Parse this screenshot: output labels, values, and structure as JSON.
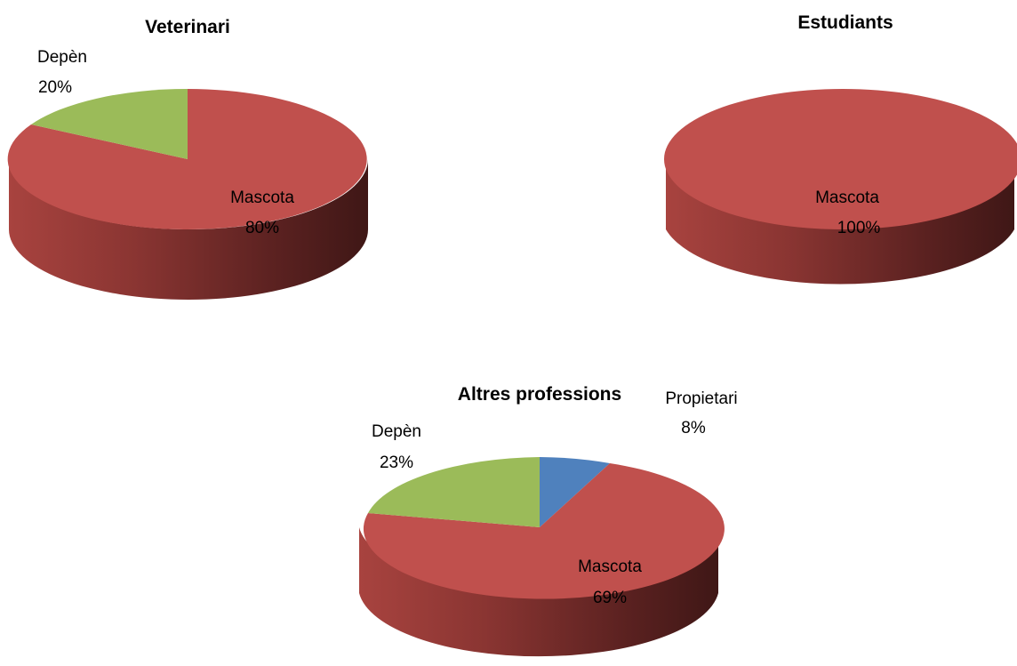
{
  "colors": {
    "Propietari": "#4F81BD",
    "Mascota": "#C0504D",
    "Depèn": "#9BBB59"
  },
  "chart_data": [
    {
      "type": "pie",
      "style": "3d",
      "title": "Veterinari",
      "slices": [
        {
          "name": "Mascota",
          "value": 80,
          "label": "80%"
        },
        {
          "name": "Depèn",
          "value": 20,
          "label": "20%"
        }
      ]
    },
    {
      "type": "pie",
      "style": "3d",
      "title": "Estudiants",
      "slices": [
        {
          "name": "Mascota",
          "value": 100,
          "label": "100%"
        }
      ]
    },
    {
      "type": "pie",
      "style": "3d",
      "title": "Altres professions",
      "slices": [
        {
          "name": "Propietari",
          "value": 8,
          "label": "8%"
        },
        {
          "name": "Mascota",
          "value": 69,
          "label": "69%"
        },
        {
          "name": "Depèn",
          "value": 23,
          "label": "23%"
        }
      ]
    }
  ]
}
